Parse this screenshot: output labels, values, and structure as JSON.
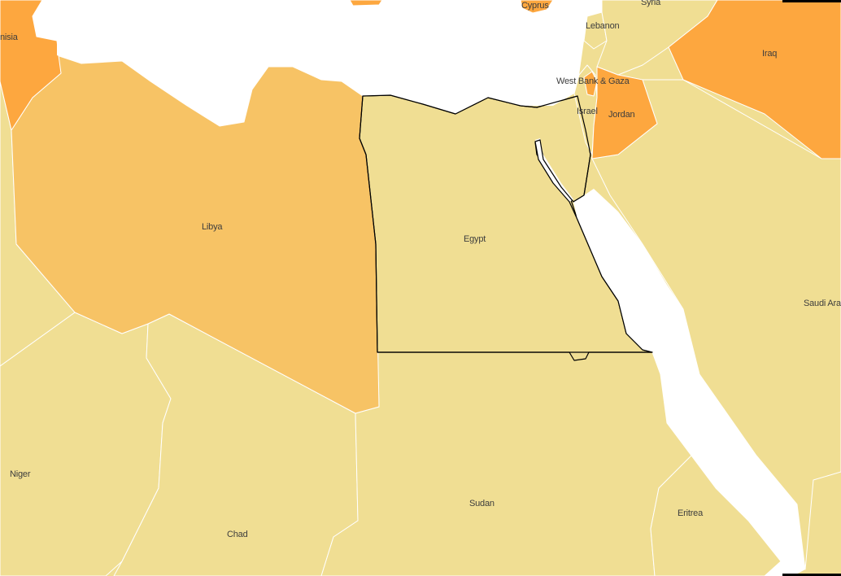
{
  "map": {
    "highlighted_country": "Egypt",
    "colors": {
      "water": "#ffffff",
      "level_low": "#f0de93",
      "level_mid": "#f7c365",
      "level_high": "#fda73f",
      "highlight_border": "#000000",
      "country_border": "#ffffff",
      "label": "#3d3d3d"
    },
    "countries": [
      {
        "id": "tunisia",
        "label": "nisia",
        "level": "high"
      },
      {
        "id": "libya",
        "label": "Libya",
        "level": "mid"
      },
      {
        "id": "egypt",
        "label": "Egypt",
        "level": "low"
      },
      {
        "id": "sudan",
        "label": "Sudan",
        "level": "low"
      },
      {
        "id": "chad",
        "label": "Chad",
        "level": "low"
      },
      {
        "id": "niger",
        "label": "Niger",
        "level": "low"
      },
      {
        "id": "eritrea",
        "label": "Eritrea",
        "level": "low"
      },
      {
        "id": "saudi-arabia",
        "label": "Saudi Ara",
        "level": "low"
      },
      {
        "id": "iraq",
        "label": "Iraq",
        "level": "high"
      },
      {
        "id": "jordan",
        "label": "Jordan",
        "level": "high"
      },
      {
        "id": "israel",
        "label": "Israel",
        "level": "low"
      },
      {
        "id": "west-bank-gaza",
        "label": "West Bank & Gaza",
        "level": "high"
      },
      {
        "id": "lebanon",
        "label": "Lebanon",
        "level": "low"
      },
      {
        "id": "syria",
        "label": "Syria",
        "level": "low"
      },
      {
        "id": "cyprus",
        "label": "Cyprus",
        "level": "high"
      }
    ]
  }
}
